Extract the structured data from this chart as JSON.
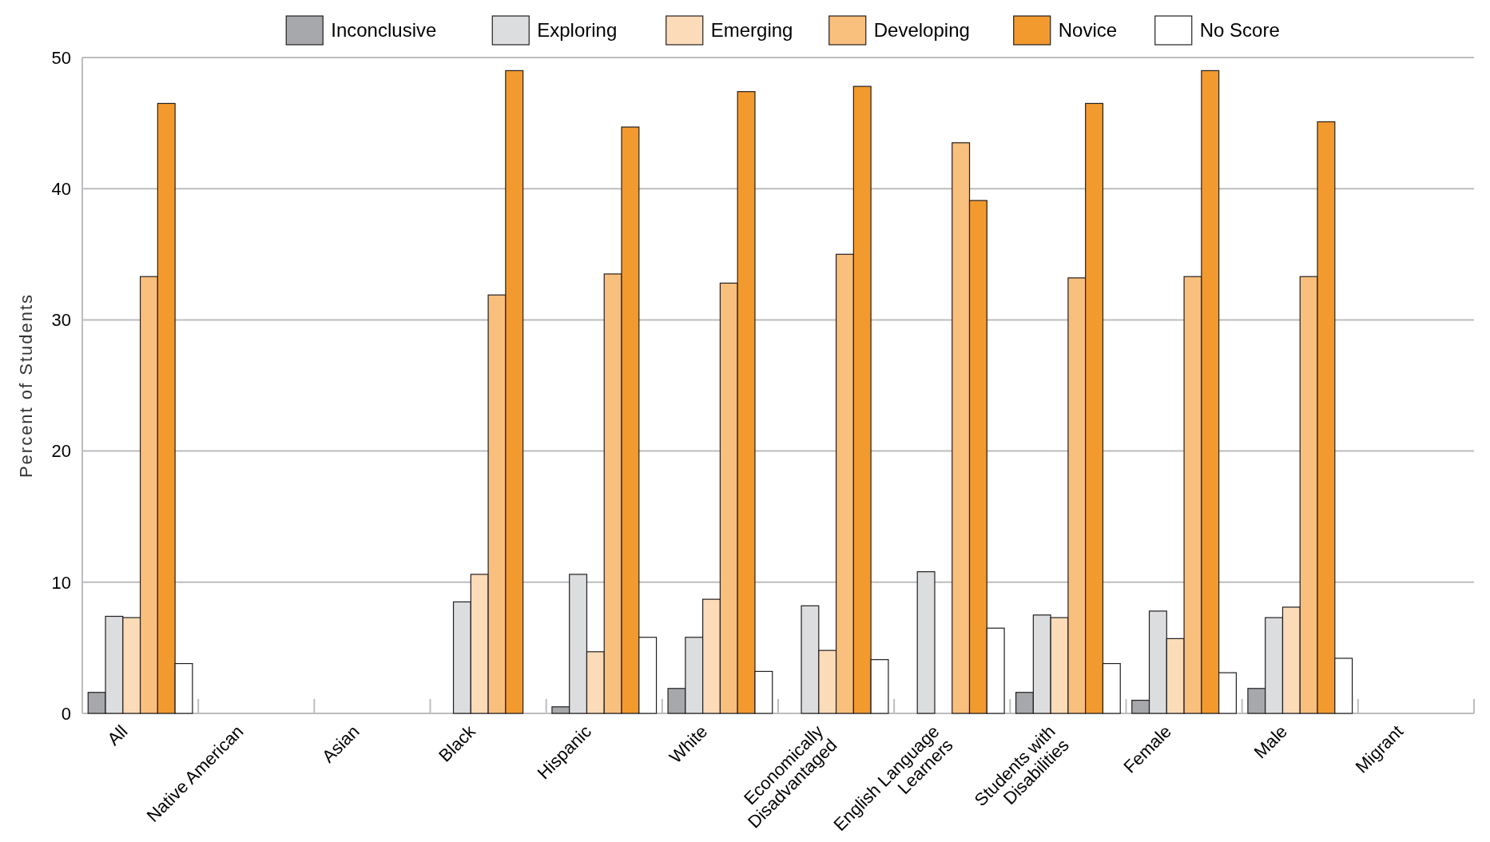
{
  "chart_data": {
    "type": "bar",
    "ylabel": "Percent of Students",
    "categories": [
      "All",
      "Native American",
      "Asian",
      "Black",
      "Hispanic",
      "White",
      "Economically Disadvantaged",
      "English Language Learners",
      "Students with Disabilities",
      "Female",
      "Male",
      "Migrant"
    ],
    "series": [
      {
        "name": "Inconclusive",
        "color": "#a7a8ab",
        "values": [
          1.6,
          null,
          null,
          0,
          0.5,
          1.9,
          0,
          0,
          1.6,
          1.0,
          1.9,
          null
        ]
      },
      {
        "name": "Exploring",
        "color": "#dcdddf",
        "values": [
          7.4,
          null,
          null,
          8.5,
          10.6,
          5.8,
          8.2,
          10.8,
          7.5,
          7.8,
          7.3,
          null
        ]
      },
      {
        "name": "Emerging",
        "color": "#fbdbb8",
        "values": [
          7.3,
          null,
          null,
          10.6,
          4.7,
          8.7,
          4.8,
          0,
          7.3,
          5.7,
          8.1,
          null
        ]
      },
      {
        "name": "Developing",
        "color": "#f9bf7c",
        "values": [
          33.3,
          null,
          null,
          31.9,
          33.5,
          32.8,
          35.0,
          43.5,
          33.2,
          33.3,
          33.3,
          null
        ]
      },
      {
        "name": "Novice",
        "color": "#f39a2e",
        "values": [
          46.5,
          null,
          null,
          49.0,
          44.7,
          47.4,
          47.8,
          39.1,
          46.5,
          49.0,
          45.1,
          null
        ]
      },
      {
        "name": "No Score",
        "color": "#ffffff",
        "values": [
          3.8,
          null,
          null,
          0,
          5.8,
          3.2,
          4.1,
          6.5,
          3.8,
          3.1,
          4.2,
          null
        ]
      }
    ],
    "ylim": [
      0,
      50
    ],
    "yticks": [
      0,
      10,
      20,
      30,
      40,
      50
    ],
    "grid": "y",
    "legend": "top"
  }
}
